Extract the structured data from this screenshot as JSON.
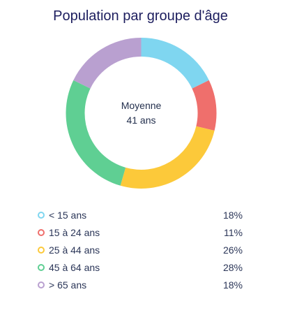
{
  "chart_data": {
    "type": "pie",
    "title": "Population par groupe d'âge",
    "center_label": [
      "Moyenne",
      "41 ans"
    ],
    "categories": [
      "< 15 ans",
      "15 à 24 ans",
      "25 à 44 ans",
      "45 à 64 ans",
      "> 65 ans"
    ],
    "values": [
      18,
      11,
      26,
      28,
      18
    ],
    "value_labels": [
      "18%",
      "11%",
      "26%",
      "28%",
      "18%"
    ],
    "colors": [
      "#7fd6f0",
      "#ef6f6c",
      "#fcc93a",
      "#5fcf93",
      "#b9a0d0"
    ],
    "legend_position": "bottom"
  }
}
